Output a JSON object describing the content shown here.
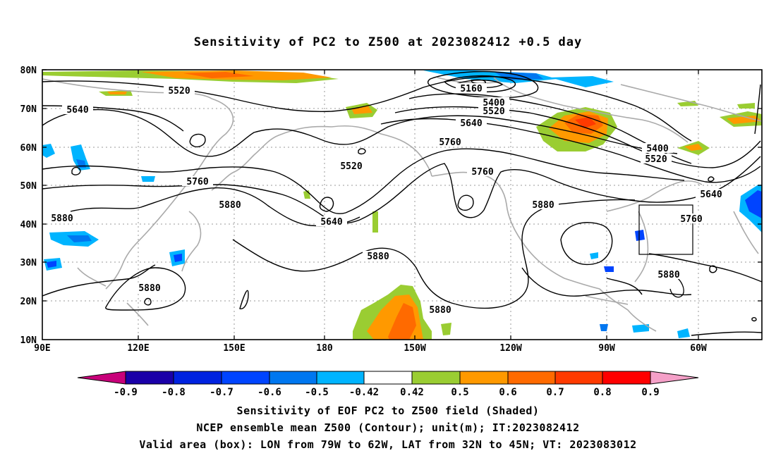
{
  "title": "Sensitivity of PC2 to Z500 at 2023082412 +0.5 day",
  "lat_labels": [
    "80N",
    "70N",
    "60N",
    "50N",
    "40N",
    "30N",
    "20N",
    "10N"
  ],
  "lon_labels": [
    "90E",
    "120E",
    "150E",
    "180",
    "150W",
    "120W",
    "90W",
    "60W"
  ],
  "contour_labels": [
    "5520",
    "5640",
    "5160",
    "5400",
    "5520",
    "5640",
    "5400",
    "5520",
    "5760",
    "5520",
    "5760",
    "5760",
    "5640",
    "5880",
    "5640",
    "5760",
    "5880",
    "5880",
    "5880",
    "5880",
    "5880",
    "5880"
  ],
  "colorbar": {
    "ticks": [
      "-0.9",
      "-0.8",
      "-0.7",
      "-0.6",
      "-0.5",
      "-0.42",
      "0.42",
      "0.5",
      "0.6",
      "0.7",
      "0.8",
      "0.9"
    ],
    "colors": [
      "#c8007a",
      "#1a00a8",
      "#0022e0",
      "#0044ff",
      "#0077f0",
      "#00b4ff",
      "#ffffff",
      "#9acd32",
      "#ff9900",
      "#ff6a00",
      "#ff3a00",
      "#ff0000",
      "#f5a0c8"
    ]
  },
  "box": {
    "lon": "79W to 62W",
    "lat": "32N to 45N"
  },
  "captions": [
    "Sensitivity of EOF PC2 to Z500 field (Shaded)",
    "NCEP ensemble mean Z500 (Contour); unit(m); IT:2023082412",
    "Valid area (box): LON from 79W to 62W, LAT from 32N to 45N; VT: 2023083012"
  ]
}
